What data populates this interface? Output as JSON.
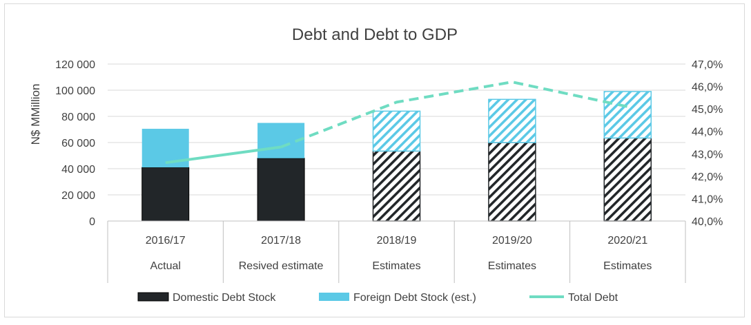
{
  "chart_data": {
    "type": "bar",
    "title": "Debt and Debt to GDP",
    "ylabel": "N$ MMillion",
    "y2label": "",
    "categories": [
      "2016/17",
      "2017/18",
      "2018/19",
      "2019/20",
      "2020/21"
    ],
    "category_groups": [
      "Actual",
      "Resived estimate",
      "Estimates",
      "Estimates",
      "Estimates"
    ],
    "ylim": [
      0,
      120000
    ],
    "y_ticks": [
      "0",
      "20 000",
      "40 000",
      "60 000",
      "80 000",
      "100 000",
      "120 000"
    ],
    "y2lim": [
      40.0,
      47.0
    ],
    "y2_ticks": [
      "40,0%",
      "41,0%",
      "42,0%",
      "43,0%",
      "44,0%",
      "45,0%",
      "46,0%",
      "47,0%"
    ],
    "stacked": true,
    "hatched_from_index": 2,
    "series": [
      {
        "name": "Domestic Debt Stock",
        "kind": "bar",
        "axis": "left",
        "color": "#222629",
        "values": [
          41000,
          48000,
          53500,
          60000,
          63500
        ]
      },
      {
        "name": "Foreign Debt Stock (est.)",
        "kind": "bar",
        "axis": "left",
        "color": "#5bc9e6",
        "values": [
          29500,
          27000,
          30500,
          33000,
          35500
        ]
      },
      {
        "name": "Total Debt",
        "kind": "line",
        "axis": "right",
        "color": "#6fdcc2",
        "values": [
          42.6,
          43.3,
          45.3,
          46.2,
          45.1
        ],
        "dashed_from_index": 2
      }
    ],
    "grid": true,
    "legend_position": "bottom"
  }
}
